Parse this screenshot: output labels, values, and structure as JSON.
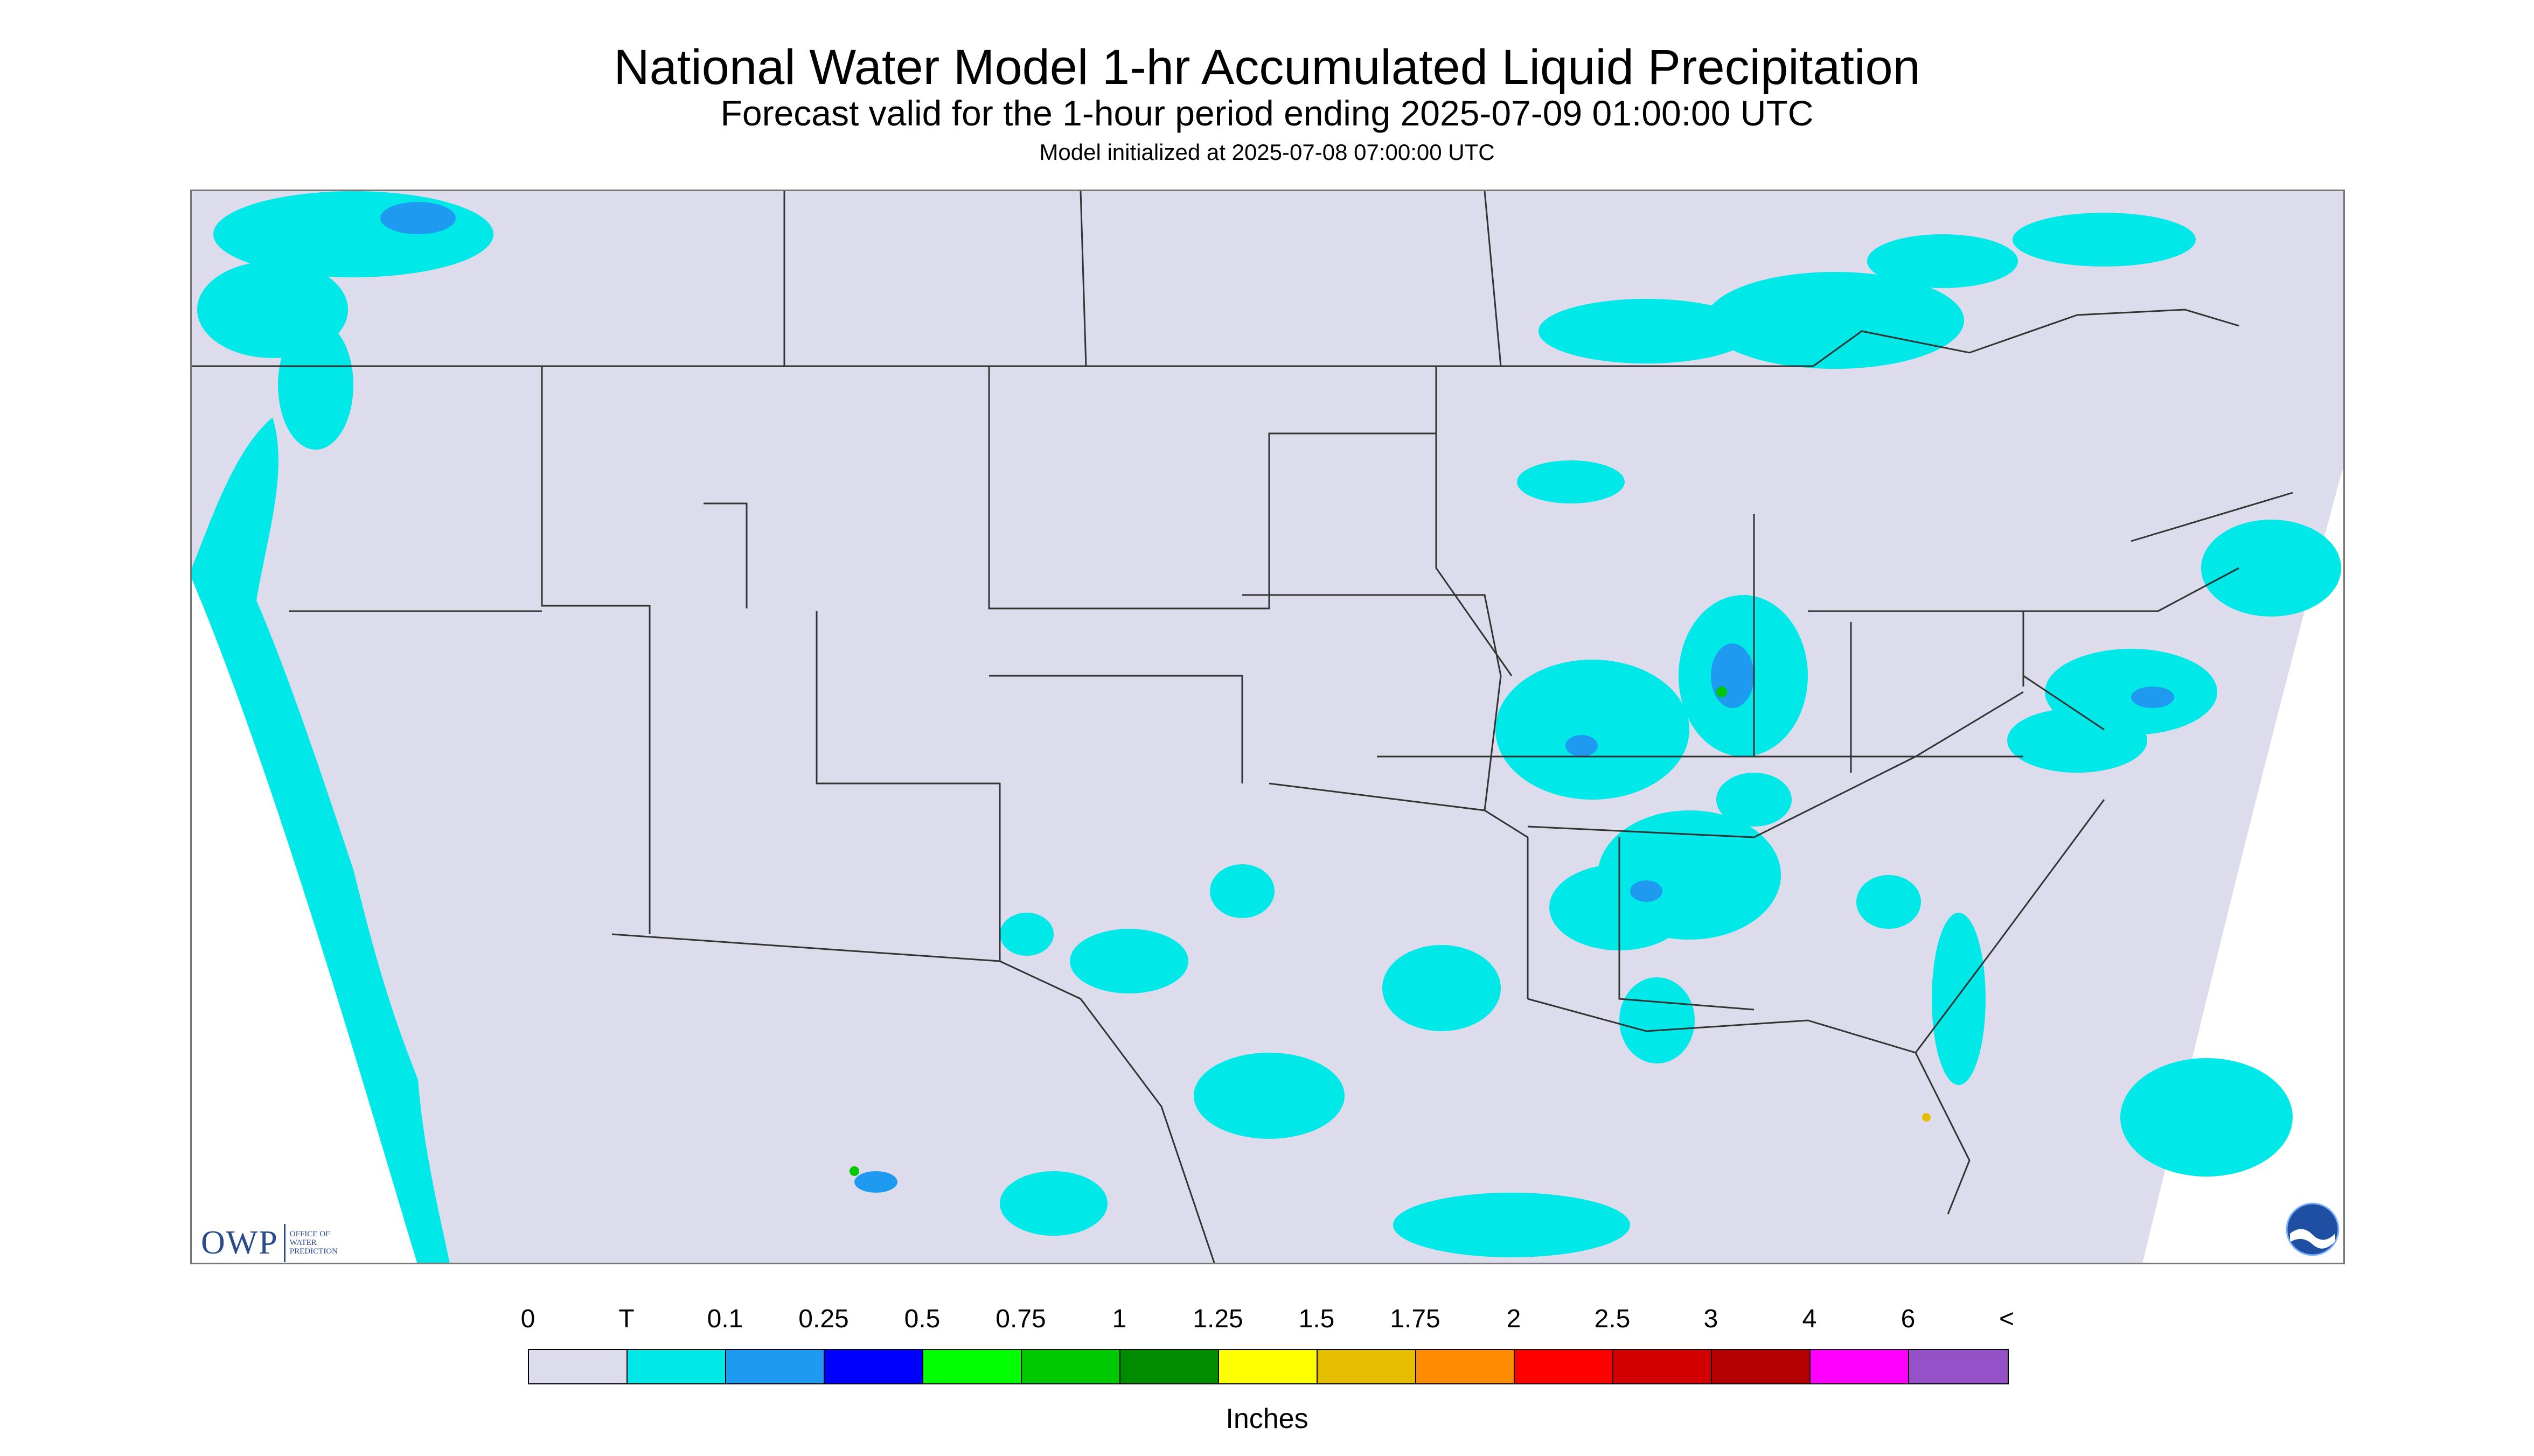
{
  "header": {
    "title": "National Water Model 1-hr Accumulated Liquid Precipitation",
    "subtitle": "Forecast valid for the 1-hour period ending 2025-07-09 01:00:00 UTC",
    "init_line": "Model initialized at 2025-07-08 07:00:00 UTC"
  },
  "map": {
    "region": "Contiguous United States with parts of Canada and Mexico",
    "background_color": "#dcdcec",
    "outside_domain_color": "#ffffff",
    "boundary_color": "#333333",
    "light_precip_color": "#00e8e8"
  },
  "logos": {
    "owp_letters": "OWP",
    "owp_line1": "Office of",
    "owp_line2": "Water",
    "owp_line3": "Prediction",
    "noaa_icon": "noaa-logo-icon"
  },
  "legend": {
    "labels": [
      "0",
      "T",
      "0.1",
      "0.25",
      "0.5",
      "0.75",
      "1",
      "1.25",
      "1.5",
      "1.75",
      "2",
      "2.5",
      "3",
      "4",
      "6",
      "<"
    ],
    "colors": [
      "#dcdcec",
      "#00e8e8",
      "#1e9bf0",
      "#0000ff",
      "#00ff00",
      "#00c800",
      "#008c00",
      "#ffff00",
      "#e6be00",
      "#ff8c00",
      "#ff0000",
      "#d20000",
      "#b40000",
      "#ff00ff",
      "#9650c8"
    ],
    "units": "Inches"
  }
}
